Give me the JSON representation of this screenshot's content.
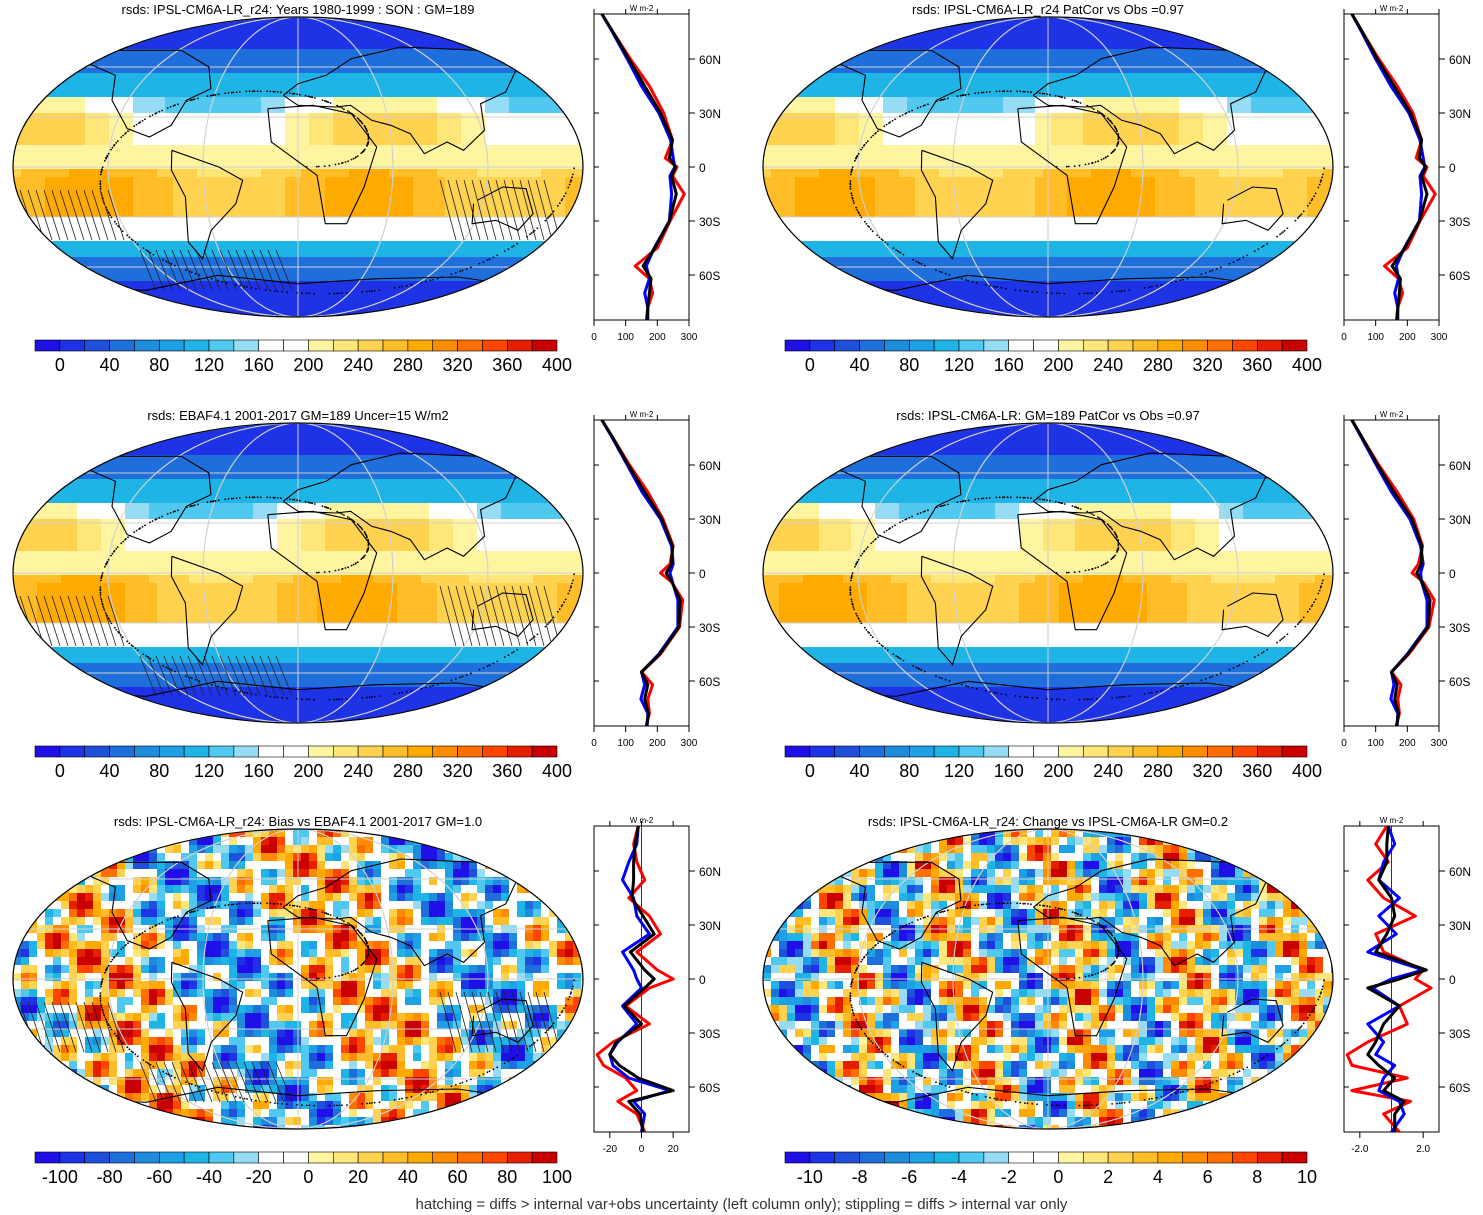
{
  "footer": "hatching = diffs > internal var+obs uncertainty (left column only); stippling = diffs > internal var only",
  "colors": {
    "scale": [
      "#1e10e6",
      "#1e32e6",
      "#1e50dc",
      "#1e6edc",
      "#1e8cdc",
      "#1ea0e6",
      "#1eb4e6",
      "#50c8f0",
      "#96dcf5",
      "#ffffff",
      "#ffffff",
      "#fff5a0",
      "#ffe678",
      "#ffd250",
      "#ffbe28",
      "#ffaa00",
      "#ff8c00",
      "#ff6e00",
      "#ff4600",
      "#e61e00",
      "#c80000"
    ],
    "obs": "#ff0000",
    "model": "#0000ff",
    "mean": "#000000",
    "coast": "#000000",
    "grid": "#d0d0d0"
  },
  "chart_data": [
    {
      "type": "heatmap",
      "title": "rsds: IPSL-CM6A-LR_r24: Years 1980-1999 : SON : GM=189",
      "colorbar_ticks": [
        "0",
        "40",
        "80",
        "120",
        "160",
        "200",
        "240",
        "280",
        "320",
        "360",
        "400"
      ],
      "profile_unit": "W m-2",
      "profile_x_ticks": [
        "0",
        "100",
        "200",
        "300"
      ],
      "profile_xlim": [
        0,
        300
      ],
      "lat_ticks": [
        "60N",
        "30N",
        "0",
        "30S",
        "60S"
      ],
      "lat": [
        85,
        75,
        60,
        45,
        30,
        15,
        5,
        0,
        -5,
        -15,
        -30,
        -45,
        -55,
        -62,
        -70,
        -78,
        -85
      ],
      "series": [
        {
          "name": "obs",
          "values": [
            25,
            60,
            115,
            175,
            220,
            248,
            225,
            262,
            248,
            285,
            240,
            200,
            130,
            175,
            185,
            170,
            165
          ]
        },
        {
          "name": "model",
          "values": [
            25,
            58,
            105,
            150,
            205,
            242,
            250,
            255,
            240,
            245,
            238,
            190,
            165,
            175,
            160,
            170,
            170
          ]
        },
        {
          "name": "mean",
          "values": [
            25,
            60,
            110,
            160,
            210,
            248,
            238,
            258,
            245,
            260,
            238,
            192,
            155,
            180,
            175,
            170,
            168
          ]
        }
      ]
    },
    {
      "type": "heatmap",
      "title": "rsds: IPSL-CM6A-LR_r24 PatCor vs Obs =0.97",
      "colorbar_ticks": [
        "0",
        "40",
        "80",
        "120",
        "160",
        "200",
        "240",
        "280",
        "320",
        "360",
        "400"
      ],
      "profile_unit": "W m-2",
      "profile_x_ticks": [
        "0",
        "100",
        "200",
        "300"
      ],
      "profile_xlim": [
        0,
        300
      ],
      "lat_ticks": [
        "60N",
        "30N",
        "0",
        "30S",
        "60S"
      ],
      "lat": [
        85,
        75,
        60,
        45,
        30,
        15,
        5,
        0,
        -5,
        -15,
        -30,
        -45,
        -55,
        -62,
        -70,
        -78,
        -85
      ],
      "series": [
        {
          "name": "obs",
          "values": [
            25,
            58,
            110,
            168,
            218,
            245,
            228,
            262,
            250,
            288,
            240,
            200,
            128,
            172,
            185,
            170,
            165
          ]
        },
        {
          "name": "model",
          "values": [
            25,
            56,
            100,
            148,
            205,
            240,
            250,
            255,
            240,
            245,
            238,
            190,
            165,
            172,
            160,
            170,
            170
          ]
        },
        {
          "name": "mean",
          "values": [
            25,
            58,
            105,
            158,
            210,
            245,
            238,
            258,
            245,
            262,
            238,
            192,
            152,
            178,
            175,
            170,
            168
          ]
        }
      ]
    },
    {
      "type": "heatmap",
      "title": "rsds: EBAF4.1 2001-2017 GM=189 Uncer=15 W/m2",
      "colorbar_ticks": [
        "0",
        "40",
        "80",
        "120",
        "160",
        "200",
        "240",
        "280",
        "320",
        "360",
        "400"
      ],
      "profile_unit": "W m-2",
      "profile_x_ticks": [
        "0",
        "100",
        "200",
        "300"
      ],
      "profile_xlim": [
        0,
        300
      ],
      "lat_ticks": [
        "60N",
        "30N",
        "0",
        "30S",
        "60S"
      ],
      "lat": [
        85,
        75,
        60,
        45,
        30,
        15,
        5,
        0,
        -5,
        -15,
        -30,
        -45,
        -55,
        -62,
        -70,
        -78,
        -85
      ],
      "series": [
        {
          "name": "obs",
          "values": [
            25,
            60,
            112,
            170,
            218,
            250,
            240,
            210,
            245,
            280,
            270,
            210,
            150,
            185,
            170,
            175,
            165
          ]
        },
        {
          "name": "model",
          "values": [
            25,
            58,
            105,
            152,
            210,
            245,
            250,
            240,
            248,
            265,
            265,
            205,
            150,
            160,
            148,
            170,
            168
          ]
        },
        {
          "name": "mean",
          "values": [
            25,
            60,
            108,
            160,
            214,
            248,
            245,
            228,
            246,
            272,
            268,
            208,
            150,
            170,
            160,
            172,
            166
          ]
        }
      ]
    },
    {
      "type": "heatmap",
      "title": "rsds: IPSL-CM6A-LR: GM=189 PatCor vs Obs =0.97",
      "colorbar_ticks": [
        "0",
        "40",
        "80",
        "120",
        "160",
        "200",
        "240",
        "280",
        "320",
        "360",
        "400"
      ],
      "profile_unit": "W m-2",
      "profile_x_ticks": [
        "0",
        "100",
        "200",
        "300"
      ],
      "profile_xlim": [
        0,
        300
      ],
      "lat_ticks": [
        "60N",
        "30N",
        "0",
        "30S",
        "60S"
      ],
      "lat": [
        85,
        75,
        60,
        45,
        30,
        15,
        5,
        0,
        -5,
        -15,
        -30,
        -45,
        -55,
        -62,
        -70,
        -78,
        -85
      ],
      "series": [
        {
          "name": "obs",
          "values": [
            25,
            58,
            110,
            168,
            220,
            248,
            235,
            215,
            250,
            285,
            268,
            205,
            150,
            180,
            170,
            175,
            165
          ]
        },
        {
          "name": "model",
          "values": [
            25,
            56,
            102,
            150,
            208,
            242,
            250,
            242,
            245,
            262,
            262,
            200,
            150,
            158,
            148,
            170,
            168
          ]
        },
        {
          "name": "mean",
          "values": [
            25,
            58,
            106,
            158,
            214,
            246,
            244,
            230,
            246,
            272,
            265,
            202,
            150,
            168,
            160,
            172,
            166
          ]
        }
      ]
    },
    {
      "type": "heatmap",
      "title": "rsds: IPSL-CM6A-LR_r24: Bias vs EBAF4.1 2001-2017  GM=1.0",
      "colorbar_ticks": [
        "-100",
        "-80",
        "-60",
        "-40",
        "-20",
        "0",
        "20",
        "40",
        "60",
        "80",
        "100"
      ],
      "profile_unit": "W m-2",
      "profile_x_ticks": [
        "-20",
        "0",
        "20"
      ],
      "profile_xlim": [
        -30,
        30
      ],
      "lat_ticks": [
        "60N",
        "30N",
        "0",
        "30S",
        "60S"
      ],
      "lat": [
        85,
        75,
        65,
        55,
        45,
        35,
        25,
        15,
        5,
        0,
        -5,
        -15,
        -25,
        -35,
        -42,
        -48,
        -55,
        -62,
        -68,
        -75,
        -85
      ],
      "series": [
        {
          "name": "obs",
          "values": [
            -2,
            -5,
            -3,
            2,
            -8,
            5,
            12,
            -3,
            10,
            20,
            5,
            -10,
            5,
            -18,
            -28,
            -24,
            -10,
            -3,
            -15,
            -3,
            2
          ]
        },
        {
          "name": "model",
          "values": [
            -2,
            -3,
            -8,
            -12,
            -5,
            -3,
            5,
            -12,
            -5,
            -3,
            0,
            -12,
            -3,
            -15,
            -20,
            -18,
            -8,
            18,
            -5,
            2,
            0
          ]
        },
        {
          "name": "mean",
          "values": [
            -2,
            -4,
            -5,
            -5,
            -6,
            1,
            8,
            -7,
            2,
            8,
            2,
            -11,
            0,
            -16,
            -20,
            -14,
            -2,
            20,
            -8,
            -1,
            1
          ]
        }
      ]
    },
    {
      "type": "heatmap",
      "title": "rsds: IPSL-CM6A-LR_r24: Change vs IPSL-CM6A-LR GM=0.2",
      "colorbar_ticks": [
        "-10",
        "-8",
        "-6",
        "-4",
        "-2",
        "0",
        "2",
        "4",
        "6",
        "8",
        "10"
      ],
      "profile_unit": "W m-2",
      "profile_x_ticks": [
        "-2.0",
        "2.0"
      ],
      "profile_xlim": [
        -3,
        3
      ],
      "lat_ticks": [
        "60N",
        "30N",
        "0",
        "30S",
        "60S"
      ],
      "lat": [
        85,
        75,
        65,
        55,
        45,
        35,
        25,
        15,
        5,
        0,
        -5,
        -15,
        -25,
        -35,
        -42,
        -48,
        -55,
        -62,
        -68,
        -75,
        -85
      ],
      "series": [
        {
          "name": "obs",
          "values": [
            -0.3,
            -1.0,
            -0.2,
            -1.5,
            -0.5,
            1.5,
            -1.0,
            -0.5,
            2.0,
            1.5,
            2.5,
            0.5,
            1.0,
            -1.5,
            -2.8,
            -2.5,
            1.0,
            -2.5,
            1.2,
            -0.5,
            0.5
          ]
        },
        {
          "name": "model",
          "values": [
            -0.2,
            0.2,
            -0.5,
            -0.8,
            0.5,
            -0.8,
            0.3,
            -1.5,
            2.0,
            0.0,
            -1.2,
            0.5,
            -1.5,
            -0.5,
            -1.0,
            0.2,
            -0.5,
            -0.8,
            0.5,
            0.8,
            0.0
          ]
        },
        {
          "name": "mean",
          "values": [
            -0.2,
            -0.3,
            -0.3,
            -0.8,
            0.0,
            0.2,
            -0.3,
            -1.0,
            2.2,
            0.5,
            -1.5,
            0.5,
            -0.5,
            -1.0,
            -1.5,
            -0.8,
            0.2,
            -0.5,
            0.8,
            0.2,
            0.2
          ]
        }
      ]
    }
  ]
}
